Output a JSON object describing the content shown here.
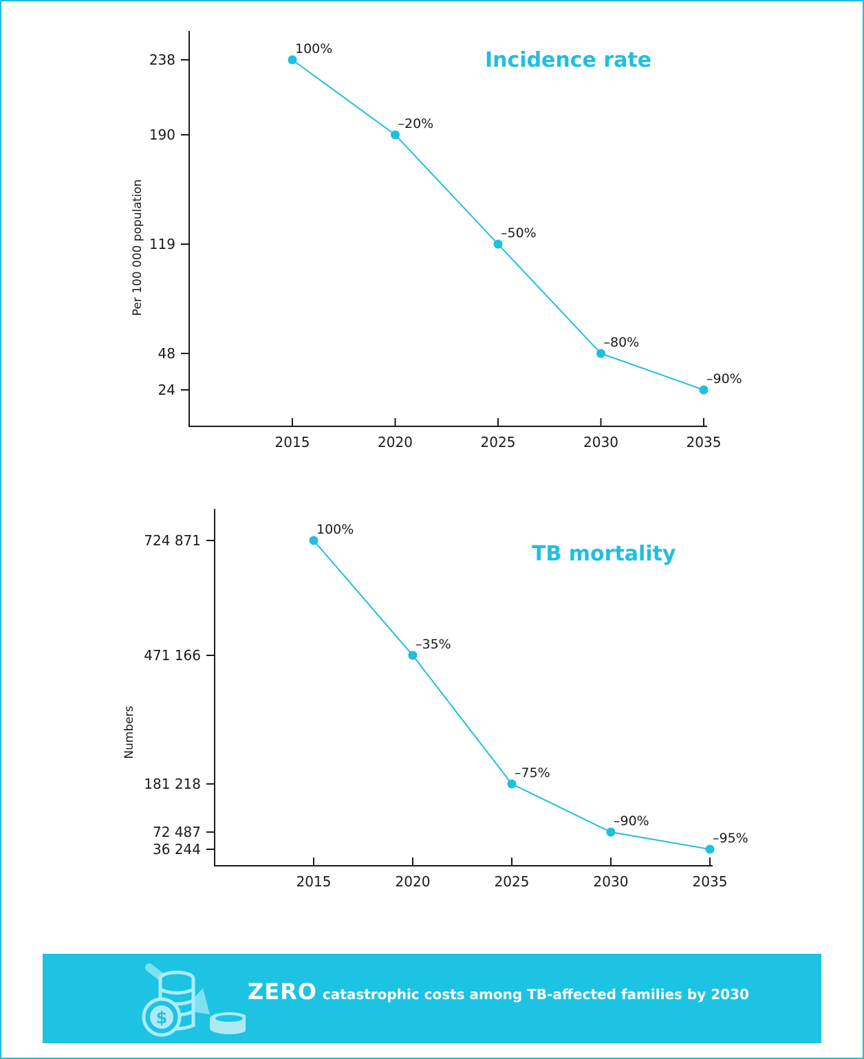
{
  "chart_data": [
    {
      "type": "line",
      "title": "Incidence rate",
      "ylabel": "Per 100 000 population",
      "x": [
        2015,
        2020,
        2025,
        2030,
        2035
      ],
      "x_tick_labels": [
        "2015",
        "2020",
        "2025",
        "2030",
        "2035"
      ],
      "y_tick_values": [
        24,
        48,
        119,
        190,
        238
      ],
      "y_tick_labels": [
        "24",
        "48",
        "119",
        "190",
        "238"
      ],
      "values": [
        238,
        190,
        119,
        48,
        24
      ],
      "point_labels": [
        "100%",
        "–20%",
        "–50%",
        "–80%",
        "–90%"
      ],
      "color": "#1fbfde",
      "grid": false
    },
    {
      "type": "line",
      "title": "TB mortality",
      "ylabel": "Numbers",
      "x": [
        2015,
        2020,
        2025,
        2030,
        2035
      ],
      "x_tick_labels": [
        "2015",
        "2020",
        "2025",
        "2030",
        "2035"
      ],
      "y_tick_values": [
        36244,
        72487,
        181218,
        471166,
        724871
      ],
      "y_tick_labels": [
        "36 244",
        "72 487",
        "181 218",
        "471 166",
        "724 871"
      ],
      "values": [
        724871,
        471166,
        181218,
        72487,
        36244
      ],
      "point_labels": [
        "100%",
        "–35%",
        "–75%",
        "–90%",
        "–95%"
      ],
      "color": "#1fbfde",
      "grid": false
    }
  ],
  "banner": {
    "strong": "ZERO",
    "text": "catastrophic costs among TB-affected families by 2030",
    "icon": "coins-down-icon",
    "background": "#1cc3e3"
  },
  "colors": {
    "accent": "#1fbfde",
    "frame": "#1fbfde"
  }
}
